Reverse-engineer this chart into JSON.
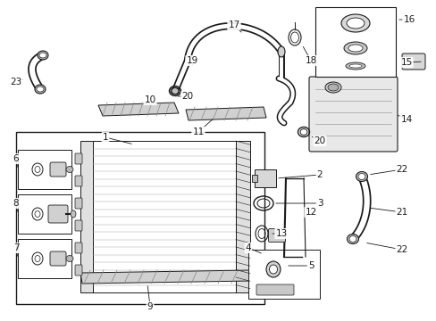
{
  "bg_color": "#ffffff",
  "line_color": "#1a1a1a",
  "gray": "#b0b0b0",
  "light_gray": "#d8d8d8"
}
